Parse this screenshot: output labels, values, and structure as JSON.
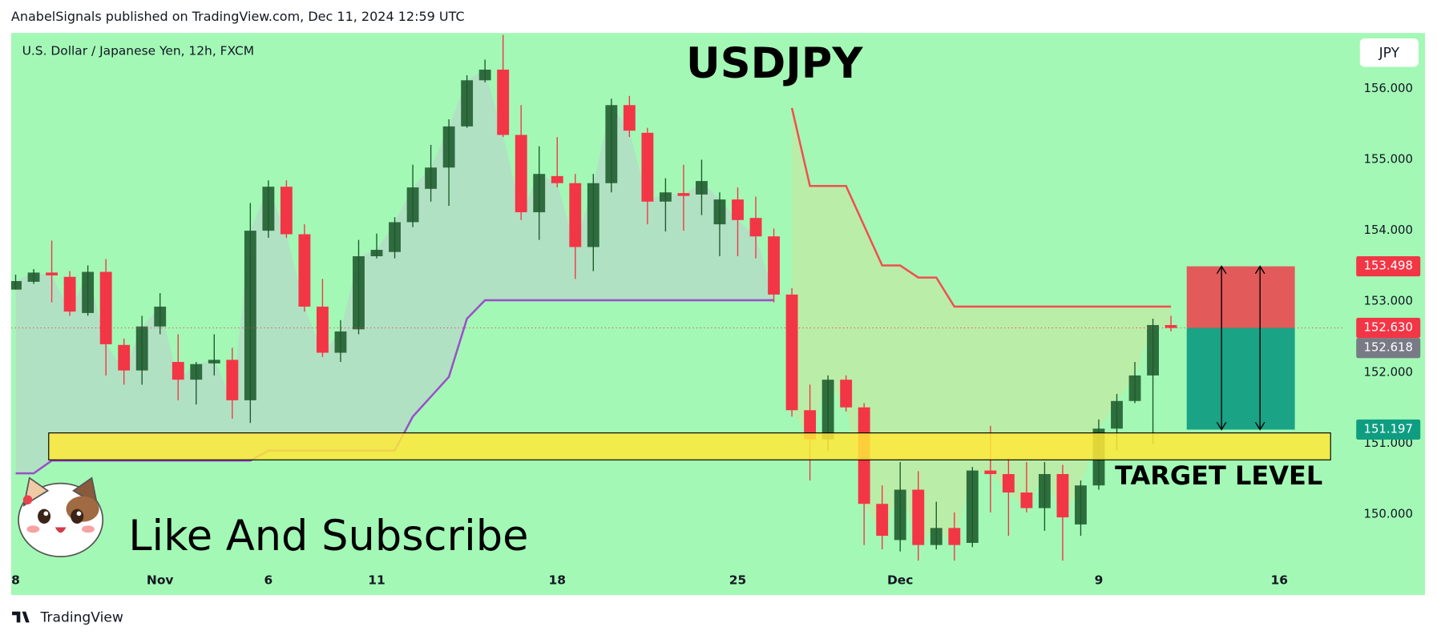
{
  "header": {
    "published": "AnabelSignals published on TradingView.com, Dec 11, 2024 12:59 UTC",
    "brand": "TradingView"
  },
  "chart_data": {
    "type": "candlestick",
    "title": "USDJPY",
    "subtitle": "U.S. Dollar / Japanese Yen, 12h, FXCM",
    "currency": "JPY",
    "caption": "Like And Subscribe",
    "up_color": "#1e5a2c",
    "down_color": "#f23645",
    "open": [
      153.17,
      153.28,
      153.41,
      153.35,
      152.84,
      153.42,
      152.39,
      152.03,
      152.65,
      152.15,
      151.9,
      152.13,
      152.18,
      151.61,
      154.0,
      154.62,
      153.95,
      152.93,
      152.28,
      152.61,
      153.64,
      153.7,
      154.12,
      154.59,
      154.89,
      155.47,
      156.12,
      156.27,
      155.35,
      154.26,
      154.77,
      154.67,
      153.77,
      154.67,
      155.77,
      155.38,
      154.41,
      154.53,
      154.51,
      154.09,
      154.44,
      154.18,
      153.92,
      153.1,
      151.47,
      151.06,
      151.9,
      151.51,
      150.15,
      149.64,
      150.35,
      149.57,
      149.81,
      149.6,
      150.62,
      150.57,
      150.31,
      150.09,
      150.57,
      149.86,
      150.41,
      151.21,
      151.6,
      151.96,
      152.67
    ],
    "high": [
      153.38,
      153.46,
      153.86,
      153.43,
      153.51,
      153.6,
      152.48,
      152.8,
      153.12,
      152.54,
      152.15,
      152.54,
      152.35,
      154.39,
      154.71,
      154.71,
      154.09,
      153.32,
      152.74,
      153.87,
      153.96,
      154.19,
      154.93,
      155.21,
      155.57,
      156.19,
      156.41,
      156.76,
      155.77,
      155.19,
      155.32,
      154.8,
      154.8,
      155.86,
      155.9,
      155.45,
      154.74,
      154.93,
      155.0,
      154.54,
      154.61,
      154.48,
      154.03,
      153.19,
      151.83,
      151.96,
      151.96,
      151.57,
      150.41,
      150.74,
      150.61,
      150.18,
      150.03,
      150.67,
      151.25,
      150.8,
      150.74,
      150.74,
      150.7,
      150.48,
      151.34,
      151.7,
      152.15,
      152.76,
      152.8
    ],
    "low": [
      153.17,
      153.25,
      152.99,
      152.8,
      152.8,
      151.96,
      151.83,
      151.83,
      152.54,
      151.61,
      151.55,
      151.96,
      151.35,
      151.29,
      153.9,
      153.9,
      152.86,
      152.22,
      152.15,
      152.54,
      153.61,
      153.61,
      154.05,
      154.41,
      154.35,
      155.45,
      156.09,
      155.32,
      154.15,
      153.87,
      154.61,
      153.32,
      153.43,
      154.54,
      155.32,
      154.09,
      153.99,
      154.0,
      154.22,
      153.64,
      153.64,
      153.61,
      152.99,
      151.38,
      150.48,
      150.9,
      151.45,
      149.57,
      149.51,
      149.48,
      149.35,
      149.51,
      149.35,
      149.54,
      150.03,
      149.7,
      150.03,
      149.77,
      149.35,
      149.7,
      150.35,
      150.9,
      151.57,
      150.99,
      152.58
    ],
    "close": [
      153.29,
      153.41,
      153.37,
      152.86,
      153.42,
      152.4,
      152.03,
      152.65,
      152.93,
      151.9,
      152.12,
      152.18,
      151.61,
      154.0,
      154.62,
      153.95,
      152.93,
      152.28,
      152.58,
      153.64,
      153.73,
      154.12,
      154.61,
      154.89,
      155.47,
      156.12,
      156.27,
      155.35,
      154.26,
      154.8,
      154.67,
      153.77,
      154.67,
      155.77,
      155.41,
      154.41,
      154.54,
      154.49,
      154.7,
      154.44,
      154.15,
      153.92,
      153.1,
      151.47,
      151.06,
      151.9,
      151.51,
      150.15,
      149.7,
      150.35,
      149.57,
      149.81,
      149.57,
      150.62,
      150.57,
      150.31,
      150.09,
      150.57,
      149.96,
      150.41,
      151.21,
      151.6,
      151.96,
      152.67,
      152.63
    ],
    "series": [
      {
        "color": "#9b4fc9",
        "values": [
          150.58,
          150.58,
          150.76,
          150.76,
          150.76,
          150.76,
          150.76,
          150.76,
          150.76,
          150.76,
          150.76,
          150.76,
          150.76,
          150.76,
          150.9,
          150.9,
          150.9,
          150.9,
          150.9,
          150.9,
          150.9,
          150.9,
          151.38,
          151.66,
          151.94,
          152.76,
          153.02,
          153.02,
          153.02,
          153.02,
          153.02,
          153.02,
          153.02,
          153.02,
          153.02,
          153.02,
          153.02,
          153.02,
          153.02,
          153.02,
          153.02,
          153.02,
          153.02,
          null,
          null,
          null,
          null,
          null,
          null,
          null,
          null,
          null,
          null,
          null,
          null,
          null,
          null,
          null,
          null,
          null,
          null,
          null,
          null,
          null,
          null
        ]
      },
      {
        "color": "#f0504f",
        "values": [
          null,
          null,
          null,
          null,
          null,
          null,
          null,
          null,
          null,
          null,
          null,
          null,
          null,
          null,
          null,
          null,
          null,
          null,
          null,
          null,
          null,
          null,
          null,
          null,
          null,
          null,
          null,
          null,
          null,
          null,
          null,
          null,
          null,
          null,
          null,
          null,
          null,
          null,
          null,
          null,
          null,
          null,
          null,
          155.73,
          154.63,
          154.63,
          154.63,
          154.07,
          153.51,
          153.51,
          153.34,
          153.34,
          152.93,
          152.93,
          152.93,
          152.93,
          152.93,
          152.93,
          152.93,
          152.93,
          152.93,
          152.93,
          152.93,
          152.93,
          152.93
        ]
      }
    ],
    "zone": {
      "label": "TARGET LEVEL",
      "low": 150.77,
      "high": 151.15,
      "color": "#ffe93a"
    },
    "position": {
      "stop": {
        "value": 153.498,
        "label": "153.498"
      },
      "entry": {
        "value": 152.63,
        "label": "152.630"
      },
      "target": {
        "value": 151.197,
        "label": "151.197"
      }
    },
    "last_price": {
      "value": 152.618,
      "label": "152.618"
    },
    "xlim": [
      -0.25,
      73.5
    ],
    "xticks": [
      {
        "value": 0,
        "label": "8"
      },
      {
        "value": 8,
        "label": "Nov"
      },
      {
        "value": 14,
        "label": "6"
      },
      {
        "value": 20,
        "label": "11"
      },
      {
        "value": 30,
        "label": "18"
      },
      {
        "value": 40,
        "label": "25"
      },
      {
        "value": 49,
        "label": "Dec"
      },
      {
        "value": 60,
        "label": "9"
      },
      {
        "value": 70,
        "label": "16"
      }
    ],
    "ylim": [
      149.226,
      156.787
    ],
    "yticks": [
      {
        "value": 150,
        "label": "150.000"
      },
      {
        "value": 151,
        "label": "151.000"
      },
      {
        "value": 152,
        "label": "152.000"
      },
      {
        "value": 153,
        "label": "153.000"
      },
      {
        "value": 154,
        "label": "154.000"
      },
      {
        "value": 155,
        "label": "155.000"
      },
      {
        "value": 156,
        "label": "156.000"
      }
    ]
  }
}
